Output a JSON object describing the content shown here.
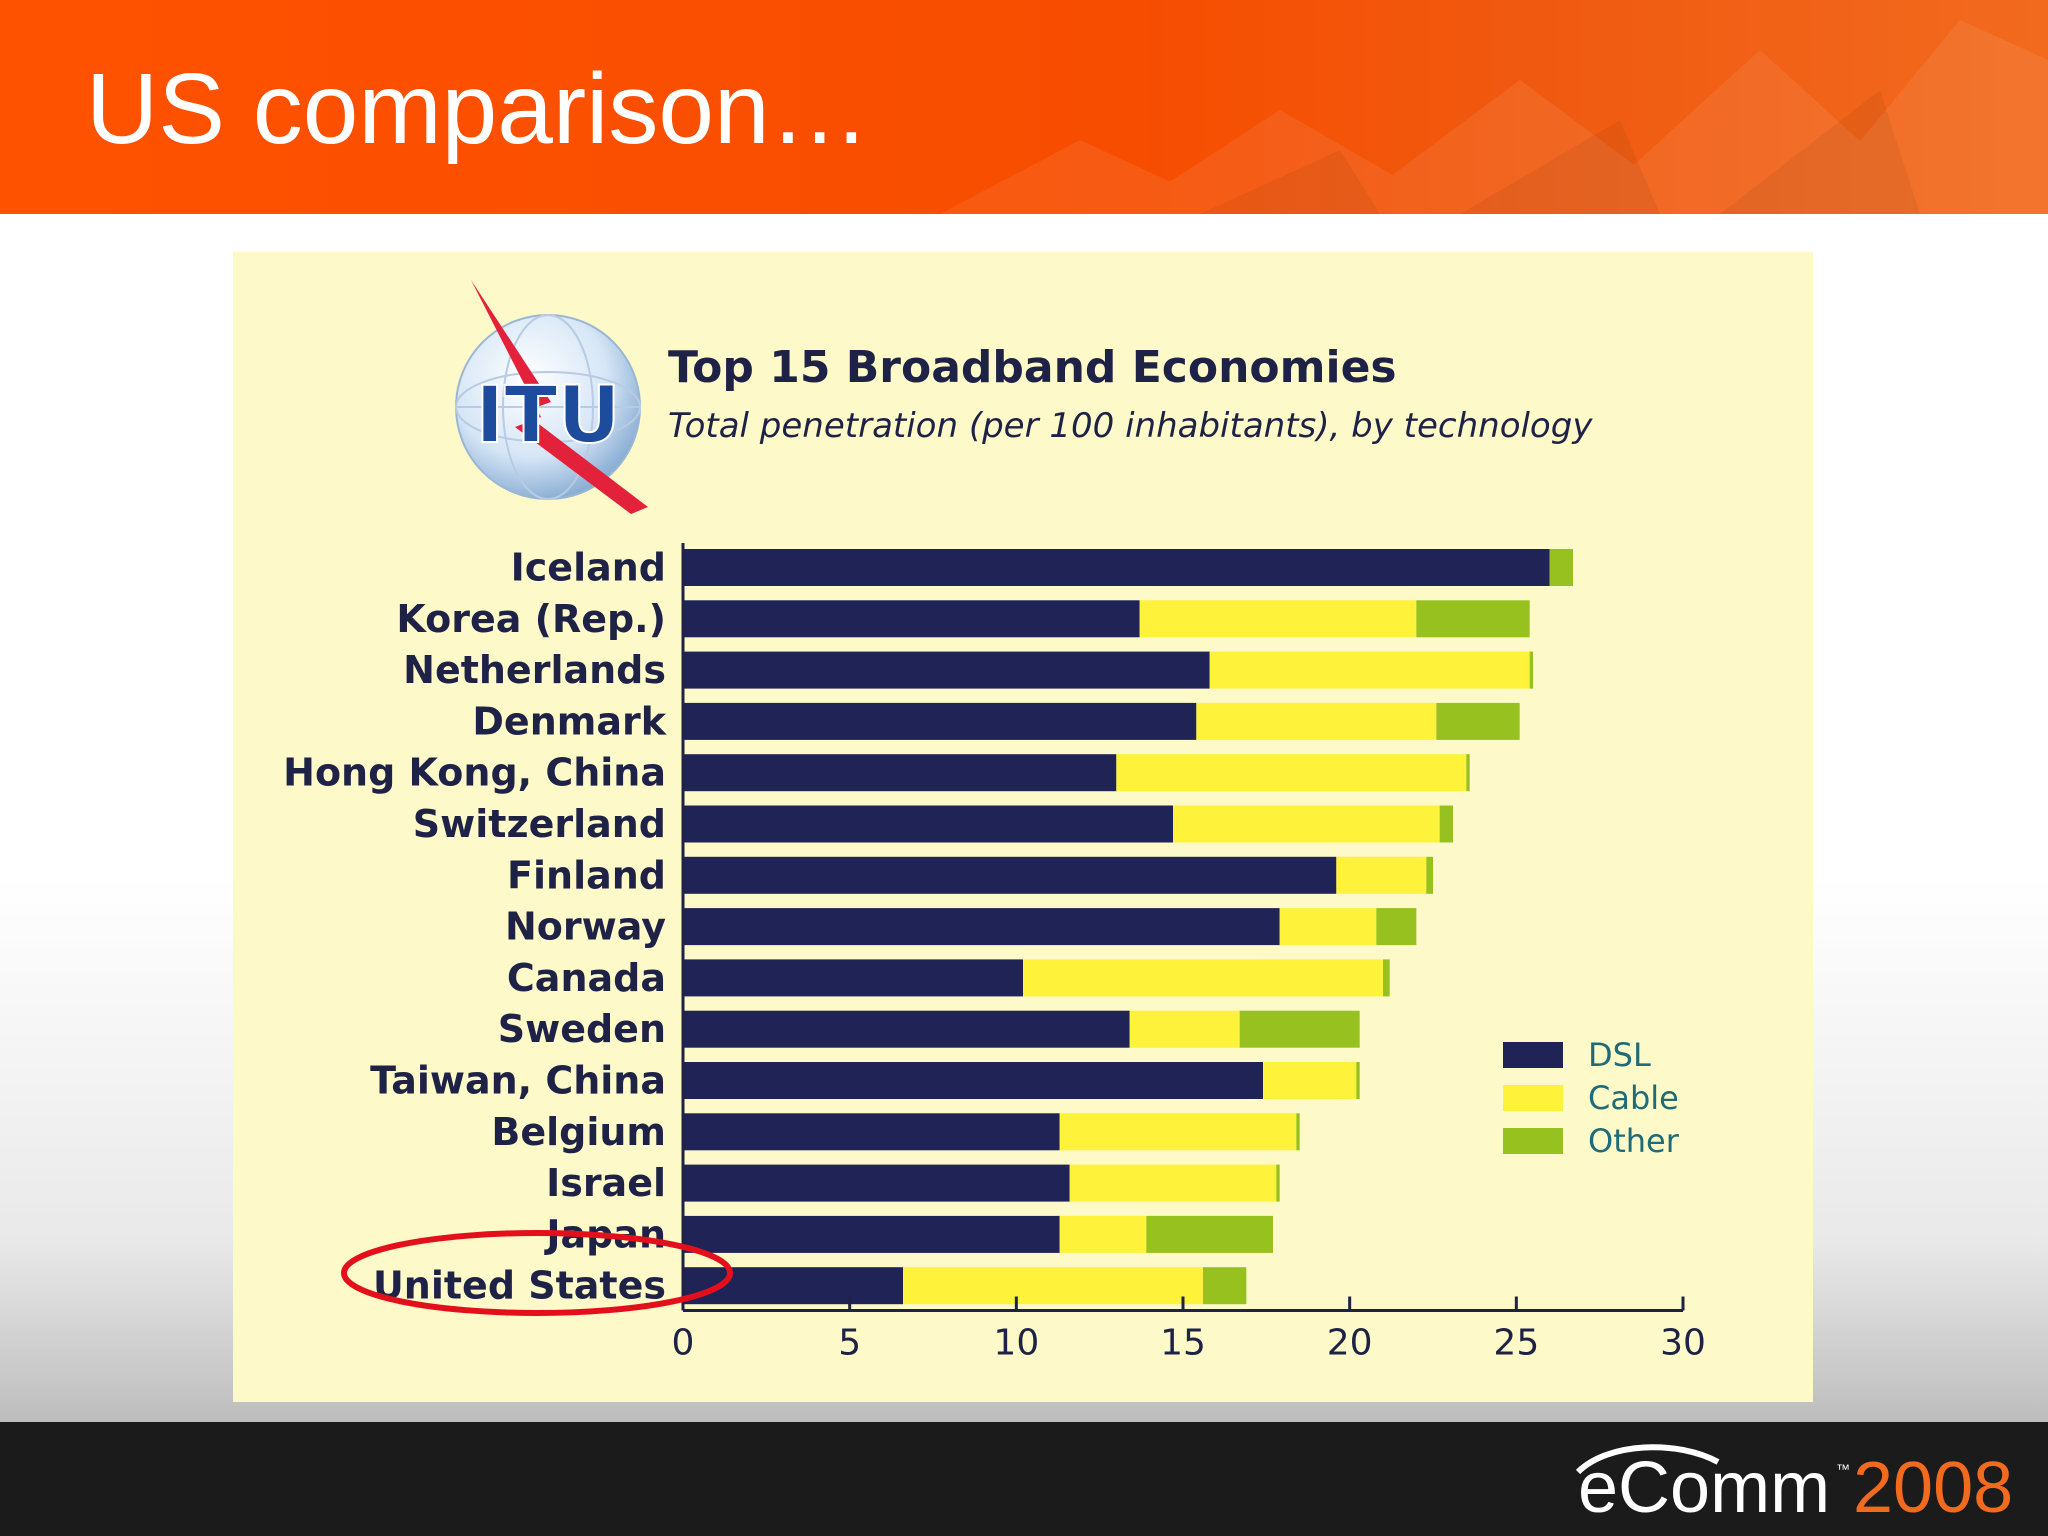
{
  "slide": {
    "title": "US comparison…"
  },
  "footer": {
    "brand_e": "e",
    "brand_comm": "Comm",
    "brand_year": "2008",
    "brand_tm": "™"
  },
  "logo": {
    "text": "ITU"
  },
  "colors": {
    "header": "#ff5200",
    "panel": "#fdf9c8",
    "dsl": "#1f2356",
    "cable": "#fff23a",
    "other": "#96c11f",
    "highlight": "#e3101b"
  },
  "chart_data": {
    "type": "bar",
    "orientation": "horizontal",
    "stacked": true,
    "title": "Top 15 Broadband Economies",
    "subtitle": "Total penetration (per 100 inhabitants), by technology",
    "categories": [
      "Iceland",
      "Korea (Rep.)",
      "Netherlands",
      "Denmark",
      "Hong Kong, China",
      "Switzerland",
      "Finland",
      "Norway",
      "Canada",
      "Sweden",
      "Taiwan, China",
      "Belgium",
      "Israel",
      "Japan",
      "United States"
    ],
    "series": [
      {
        "name": "DSL",
        "color": "#1f2356",
        "values": [
          26.0,
          13.7,
          15.8,
          15.4,
          13.0,
          14.7,
          19.6,
          17.9,
          10.2,
          13.4,
          17.4,
          11.3,
          11.6,
          11.3,
          6.6
        ]
      },
      {
        "name": "Cable",
        "color": "#fff23a",
        "values": [
          0.0,
          8.3,
          9.6,
          7.2,
          10.5,
          8.0,
          2.7,
          2.9,
          10.8,
          3.3,
          2.8,
          7.1,
          6.2,
          2.6,
          9.0
        ]
      },
      {
        "name": "Other",
        "color": "#96c11f",
        "values": [
          0.7,
          3.4,
          0.1,
          2.5,
          0.1,
          0.4,
          0.2,
          1.2,
          0.2,
          3.6,
          0.1,
          0.1,
          0.1,
          3.8,
          1.3
        ]
      }
    ],
    "xlim": [
      0,
      30
    ],
    "xticks": [
      "0",
      "5",
      "10",
      "15",
      "20",
      "25",
      "30"
    ],
    "legend": {
      "position": "right",
      "entries": [
        "DSL",
        "Cable",
        "Other"
      ]
    },
    "highlighted_category": "United States",
    "grid": false
  }
}
